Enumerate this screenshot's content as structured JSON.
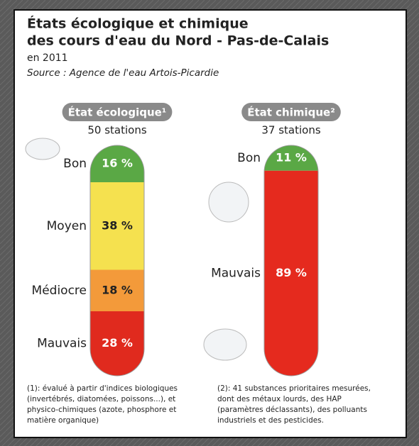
{
  "title": [
    "États écologique et chimique",
    "des cours d'eau du Nord - Pas-de-Calais"
  ],
  "subtitle": "en 2011",
  "source": "Source : Agence de l'eau Artois-Picardie",
  "chart_data": [
    {
      "type": "stacked-tube",
      "title": "État écologique¹",
      "subtitle": "50 stations",
      "categories": [
        "Bon",
        "Moyen",
        "Médiocre",
        "Mauvais"
      ],
      "values": [
        16,
        38,
        18,
        28
      ],
      "value_labels": [
        "16 %",
        "38 %",
        "18 %",
        "28 %"
      ],
      "colors": [
        "#5aa845",
        "#f5e14f",
        "#f39a3a",
        "#e02a1e"
      ],
      "note": [
        "(1): évalué à partir d'indices biologiques",
        "(invertébrés, diatomées, poissons...), et",
        "physico-chimiques (azote, phosphore et",
        "matière organique)"
      ]
    },
    {
      "type": "stacked-tube",
      "title": "État chimique²",
      "subtitle": "37 stations",
      "categories": [
        "Bon",
        "Mauvais"
      ],
      "values": [
        11,
        89
      ],
      "value_labels": [
        "11 %",
        "89 %"
      ],
      "colors": [
        "#5aa845",
        "#e52a1e"
      ],
      "note": [
        "(2): 41 substances  prioritaires mesurées,",
        "dont des métaux lourds, des HAP",
        "(paramètres déclassants), des polluants",
        "industriels et des pesticides."
      ]
    }
  ]
}
